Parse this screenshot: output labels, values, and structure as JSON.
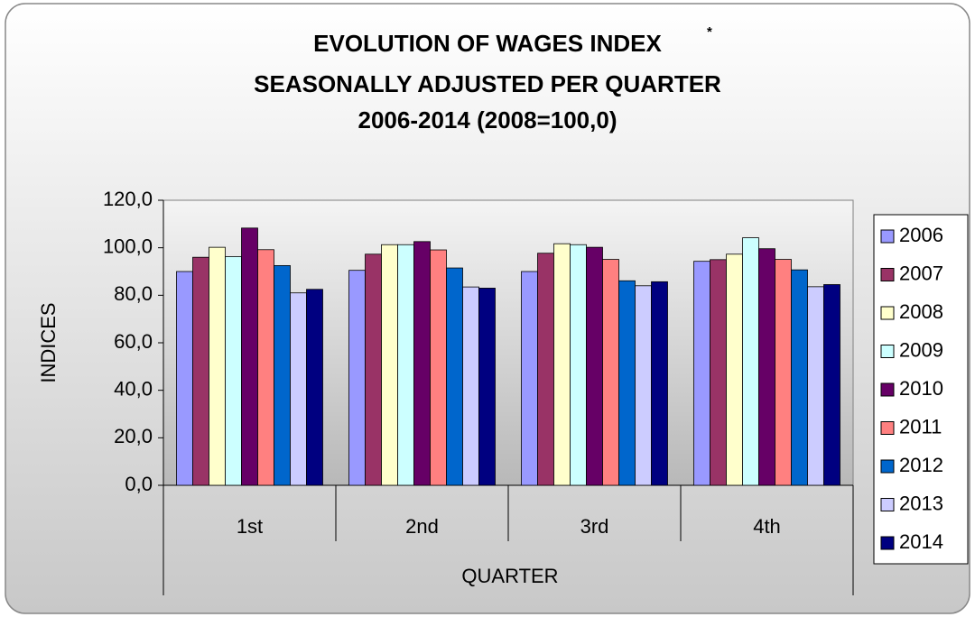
{
  "chart_data": {
    "type": "bar",
    "title": [
      "EVOLUTION OF WAGES INDEX",
      "SEASONALLY ADJUSTED PER QUARTER",
      "2006-2014 (2008=100,0)"
    ],
    "title_marker": "*",
    "x_label": "QUARTER",
    "y_label": "INDICES",
    "categories": [
      "1st",
      "2nd",
      "3rd",
      "4th"
    ],
    "series": [
      {
        "name": "2006",
        "color": "#9999ff",
        "values": [
          90.0,
          90.5,
          90.0,
          94.3
        ]
      },
      {
        "name": "2007",
        "color": "#993366",
        "values": [
          96.0,
          97.3,
          97.7,
          95.0
        ]
      },
      {
        "name": "2008",
        "color": "#ffffcc",
        "values": [
          100.2,
          101.3,
          101.7,
          97.3
        ]
      },
      {
        "name": "2009",
        "color": "#ccffff",
        "values": [
          96.3,
          101.3,
          101.3,
          104.2
        ]
      },
      {
        "name": "2010",
        "color": "#660066",
        "values": [
          108.3,
          102.6,
          100.2,
          99.6
        ]
      },
      {
        "name": "2011",
        "color": "#ff8080",
        "values": [
          99.2,
          99.1,
          95.1,
          95.1
        ]
      },
      {
        "name": "2012",
        "color": "#0066cc",
        "values": [
          92.5,
          91.5,
          86.1,
          90.7
        ]
      },
      {
        "name": "2013",
        "color": "#ccccff",
        "values": [
          81.0,
          83.5,
          84.0,
          83.6
        ]
      },
      {
        "name": "2014",
        "color": "#000080",
        "values": [
          82.5,
          83.0,
          85.7,
          84.5
        ]
      }
    ],
    "ylim": [
      0,
      120
    ],
    "yticks": [
      {
        "value": 0,
        "label": "0,0"
      },
      {
        "value": 20,
        "label": "20,0"
      },
      {
        "value": 40,
        "label": "40,0"
      },
      {
        "value": 60,
        "label": "60,0"
      },
      {
        "value": 80,
        "label": "80,0"
      },
      {
        "value": 100,
        "label": "100,0"
      },
      {
        "value": 120,
        "label": "120,0"
      }
    ],
    "legend": "right"
  }
}
